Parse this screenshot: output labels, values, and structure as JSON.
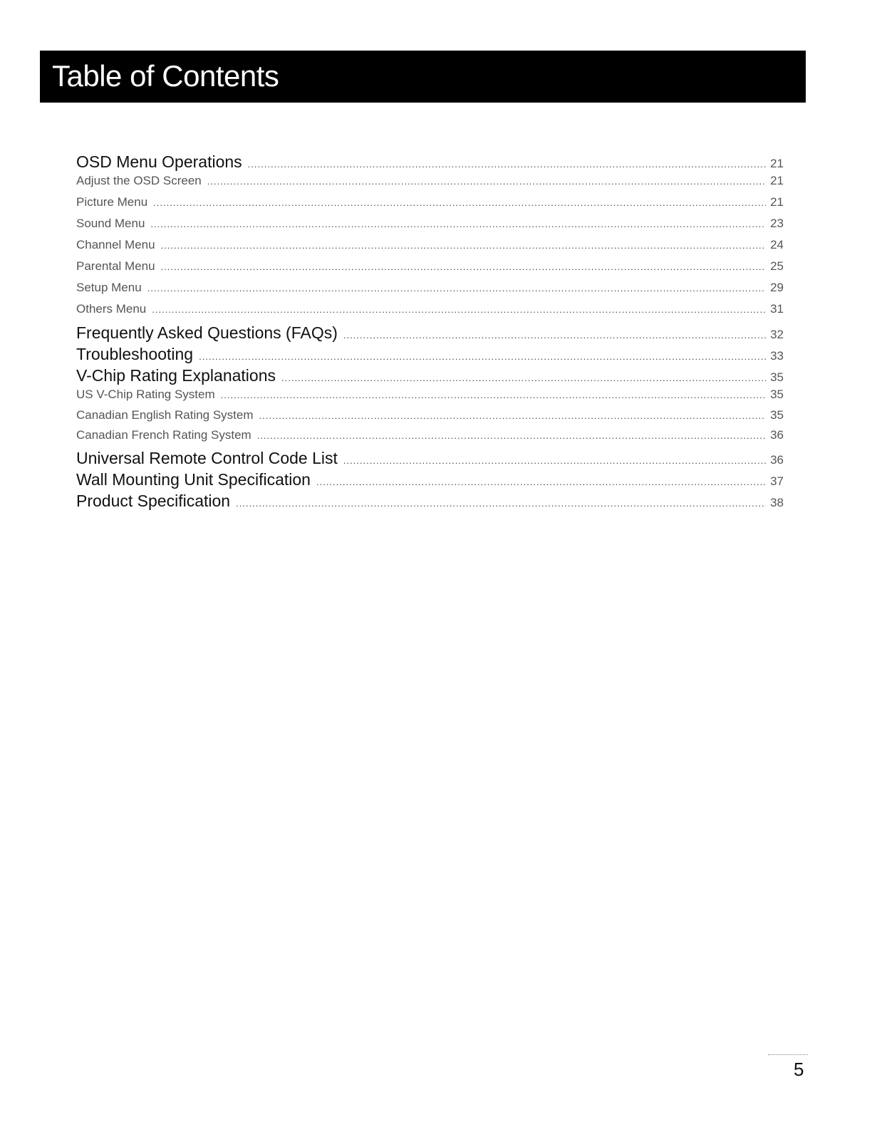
{
  "header": {
    "title": "Table of Contents"
  },
  "toc": [
    {
      "label": "OSD Menu Operations",
      "page": "21",
      "level": "main"
    },
    {
      "label": "Adjust the OSD Screen",
      "page": "21",
      "level": "sub"
    },
    {
      "label": "Picture Menu",
      "page": "21",
      "level": "sub"
    },
    {
      "label": "Sound Menu",
      "page": "23",
      "level": "sub"
    },
    {
      "label": "Channel Menu",
      "page": "24",
      "level": "sub"
    },
    {
      "label": "Parental Menu",
      "page": "25",
      "level": "sub"
    },
    {
      "label": "Setup Menu",
      "page": "29",
      "level": "sub"
    },
    {
      "label": "Others Menu",
      "page": "31",
      "level": "sub"
    },
    {
      "label": "Frequently Asked Questions (FAQs)",
      "page": "32",
      "level": "main"
    },
    {
      "label": "Troubleshooting",
      "page": "33",
      "level": "main"
    },
    {
      "label": "V-Chip Rating Explanations",
      "page": "35",
      "level": "main"
    },
    {
      "label": "US V-Chip Rating System",
      "page": "35",
      "level": "sub"
    },
    {
      "label": "Canadian English Rating System",
      "page": "35",
      "level": "sub"
    },
    {
      "label": "Canadian French Rating System",
      "page": "36",
      "level": "sub"
    },
    {
      "label": "Universal Remote Control Code List",
      "page": "36",
      "level": "main"
    },
    {
      "label": "Wall Mounting Unit Specification",
      "page": "37",
      "level": "main"
    },
    {
      "label": "Product Specification",
      "page": "38",
      "level": "main"
    }
  ],
  "footer": {
    "page_number": "5"
  }
}
